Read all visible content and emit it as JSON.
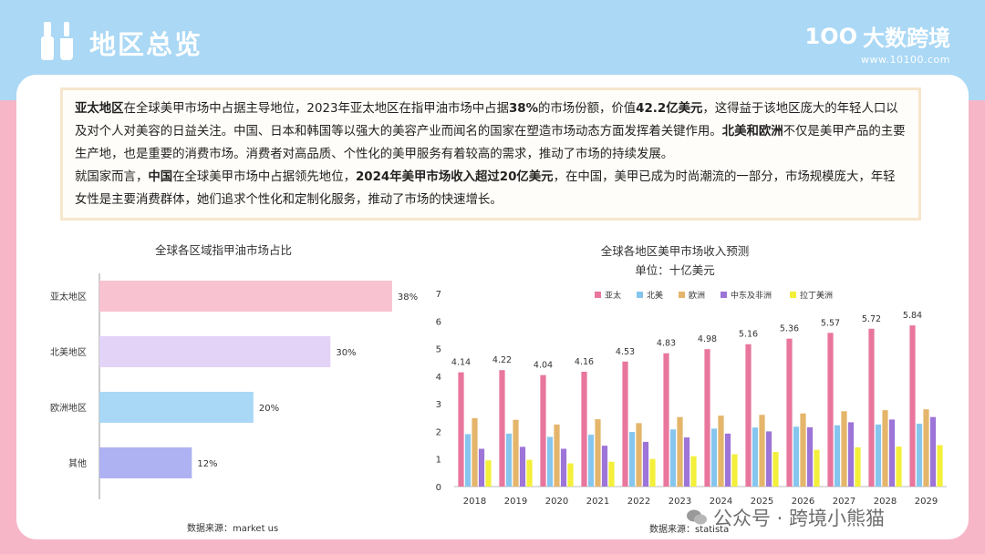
{
  "header": {
    "title": "地区总览",
    "brand_mark": "1OO",
    "brand_name": "大数跨境",
    "brand_url": "www.10100.com",
    "colors": {
      "top_band": "#aad8f5",
      "bottom_band": "#f7b6c8"
    }
  },
  "summary": {
    "p1": [
      {
        "t": "亚太地区",
        "b": true
      },
      {
        "t": "在全球美甲市场中占据主导地位，2023年亚太地区在指甲油市场中占据",
        "b": false
      },
      {
        "t": "38%",
        "b": true
      },
      {
        "t": "的市场份额，价值",
        "b": false
      },
      {
        "t": "42.2亿美元",
        "b": true
      },
      {
        "t": "，这得益于该地区庞大的年轻人口以及对个人对美容的日益关注。中国、日本和韩国等以强大的美容产业而闻名的国家在塑造市场动态方面发挥着关键作用。",
        "b": false
      },
      {
        "t": "北美和欧洲",
        "b": true
      },
      {
        "t": "不仅是美甲产品的主要生产地，也是重要的消费市场。消费者对高品质、个性化的美甲服务有着较高的需求，推动了市场的持续发展。",
        "b": false
      }
    ],
    "p2": [
      {
        "t": "就国家而言，",
        "b": false
      },
      {
        "t": "中国",
        "b": true
      },
      {
        "t": "在全球美甲市场中占据领先地位，",
        "b": false
      },
      {
        "t": "2024年美甲市场收入超过20亿美元",
        "b": true
      },
      {
        "t": "，在中国，美甲已成为时尚潮流的一部分，市场规模庞大，年轻女性是主要消费群体，她们追求个性化和定制化服务，推动了市场的快速增长。",
        "b": false
      }
    ]
  },
  "chart_data": [
    {
      "type": "bar",
      "orientation": "horizontal",
      "title": "全球各区域指甲油市场占比",
      "categories": [
        "亚太地区",
        "北美地区",
        "欧洲地区",
        "其他"
      ],
      "values": [
        38,
        30,
        20,
        12
      ],
      "value_labels": [
        "38%",
        "30%",
        "20%",
        "12%"
      ],
      "colors": [
        "#f9c2d0",
        "#e3d3f7",
        "#a9d8f6",
        "#aeb2f2"
      ],
      "xlim": [
        0,
        45
      ],
      "source": "数据来源：market us"
    },
    {
      "type": "bar",
      "title": "全球各地区美甲市场收入预测",
      "subtitle": "单位：十亿美元",
      "categories": [
        "2018",
        "2019",
        "2020",
        "2021",
        "2022",
        "2023",
        "2024",
        "2025",
        "2026",
        "2027",
        "2028",
        "2029"
      ],
      "ylim": [
        0,
        7
      ],
      "yticks": [
        0,
        1,
        2,
        3,
        4,
        5,
        6,
        7
      ],
      "legend_position": "top",
      "series": [
        {
          "name": "亚太",
          "color": "#e8769d",
          "values": [
            4.14,
            4.22,
            4.04,
            4.16,
            4.53,
            4.83,
            4.98,
            5.16,
            5.36,
            5.57,
            5.72,
            5.84
          ],
          "labels": [
            "4.14",
            "4.22",
            "4.04",
            "4.16",
            "4.53",
            "4.83",
            "4.98",
            "5.16",
            "5.36",
            "5.57",
            "5.72",
            "5.84"
          ]
        },
        {
          "name": "北美",
          "color": "#86c6ee",
          "values": [
            1.9,
            1.92,
            1.8,
            1.88,
            1.98,
            2.07,
            2.1,
            2.14,
            2.17,
            2.22,
            2.25,
            2.28
          ]
        },
        {
          "name": "欧洲",
          "color": "#e4b56a",
          "values": [
            2.48,
            2.42,
            2.25,
            2.44,
            2.3,
            2.52,
            2.57,
            2.6,
            2.65,
            2.73,
            2.77,
            2.8
          ]
        },
        {
          "name": "中东及非洲",
          "color": "#9d74d8",
          "values": [
            1.37,
            1.44,
            1.37,
            1.48,
            1.62,
            1.78,
            1.92,
            2.0,
            2.15,
            2.33,
            2.43,
            2.52
          ]
        },
        {
          "name": "拉丁美洲",
          "color": "#f3ef3a",
          "values": [
            0.95,
            0.97,
            0.84,
            0.9,
            1.0,
            1.1,
            1.17,
            1.25,
            1.33,
            1.42,
            1.45,
            1.5
          ]
        }
      ],
      "source": "数据来源：statista"
    }
  ],
  "watermark": "公众号 · 跨境小熊猫"
}
